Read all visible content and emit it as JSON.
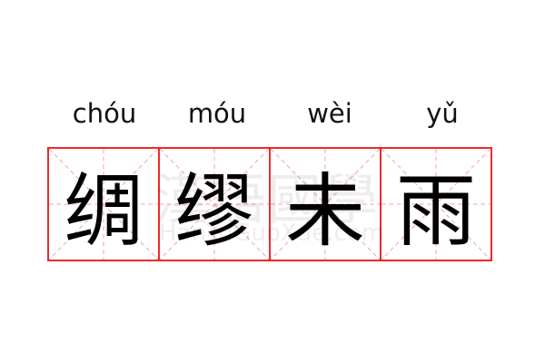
{
  "characters": [
    {
      "hanzi": "绸",
      "pinyin": "chóu"
    },
    {
      "hanzi": "缪",
      "pinyin": "móu"
    },
    {
      "hanzi": "未",
      "pinyin": "wèi"
    },
    {
      "hanzi": "雨",
      "pinyin": "yǔ"
    }
  ],
  "watermark": {
    "chinese": "漢語國學",
    "latin": "HanYuGuoXue.com"
  },
  "colors": {
    "grid_border": "#ee2a2a",
    "grid_guides": "#f4a0a0",
    "text": "#000000"
  }
}
